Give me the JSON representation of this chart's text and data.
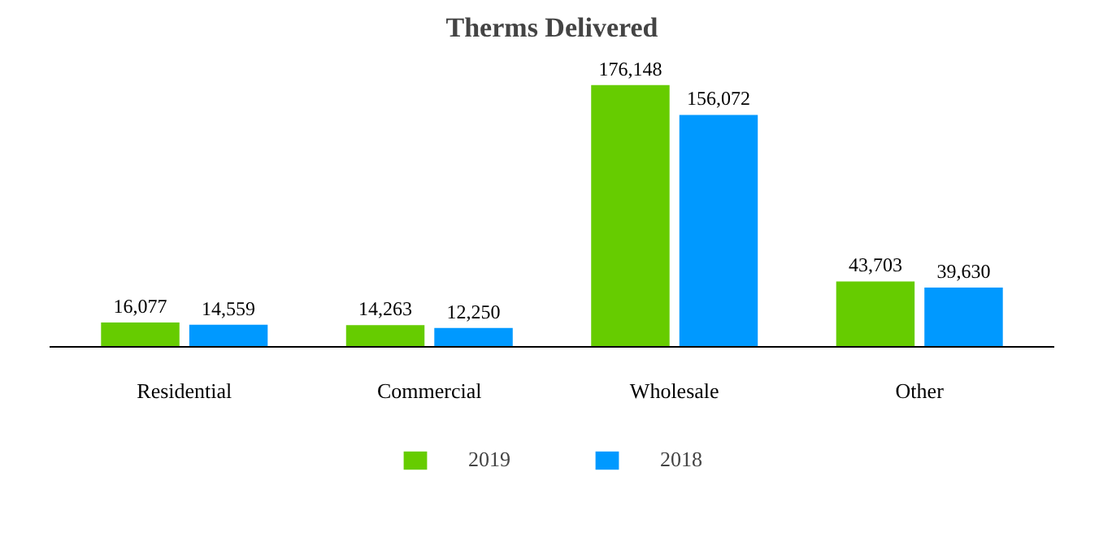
{
  "chart_data": {
    "type": "bar",
    "title": "Therms Delivered",
    "categories": [
      "Residential",
      "Commercial",
      "Wholesale",
      "Other"
    ],
    "series": [
      {
        "name": "2019",
        "color": "#66cc00",
        "values": [
          16077,
          14263,
          176148,
          43703
        ],
        "value_labels": [
          "16,077",
          "14,263",
          "176,148",
          "43,703"
        ]
      },
      {
        "name": "2018",
        "color": "#0099ff",
        "values": [
          14559,
          12250,
          156072,
          39630
        ],
        "value_labels": [
          "14,559",
          "12,250",
          "156,072",
          "39,630"
        ]
      }
    ],
    "legend": "bottom",
    "grid": false
  }
}
